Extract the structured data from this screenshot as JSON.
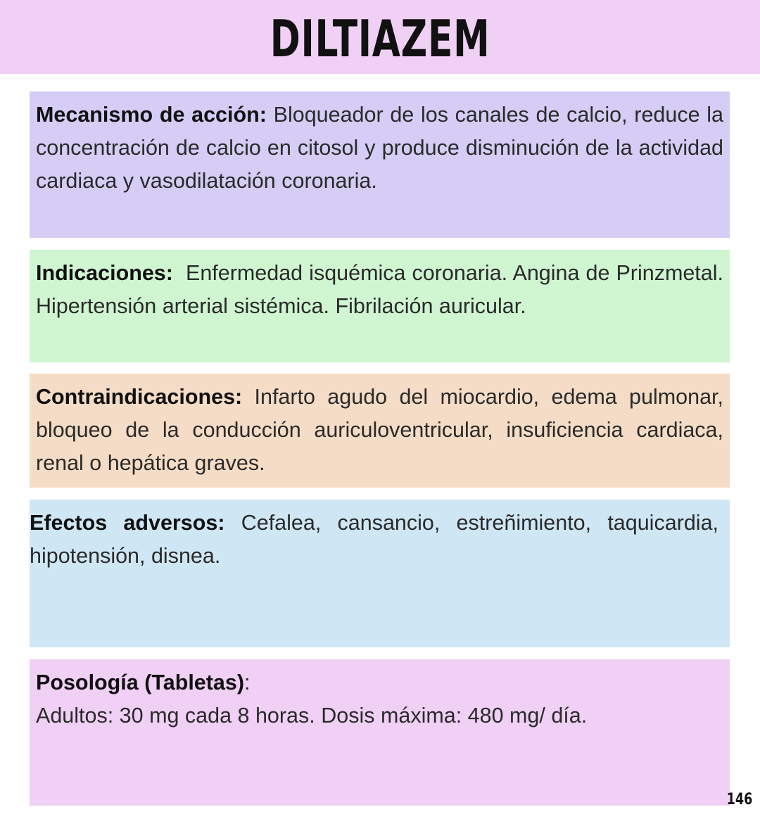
{
  "title": "DILTIAZEM",
  "sections": [
    {
      "label": "Mecanismo de acción:",
      "text": " Bloqueador de los canales de calcio, reduce la concentración de calcio en citosol y produce disminución de la actividad cardiaca y vasodilatación coronaria.",
      "color": "#d5cdf5"
    },
    {
      "label": "Indicaciones:",
      "text": "  Enfermedad isquémica coronaria. Angina de Prinzmetal. Hipertensión arterial sistémica. Fibrilación auricular.",
      "color": "#cff5d1"
    },
    {
      "label": "Contraindicaciones:",
      "text": " Infarto agudo del miocardio, edema pulmonar, bloqueo de la conducción auriculoventricular, insuficiencia cardiaca, renal o hepática graves.",
      "color": "#f5dcc6"
    },
    {
      "label": "Efectos adversos:",
      "text": " Cefalea, cansancio, estreñimiento, taquicardia, hipotensión, disnea.",
      "color": "#cfe7f5"
    },
    {
      "label": "Posología (Tabletas)",
      "suffix": ":",
      "text": "Adultos: 30 mg cada 8 horas. Dosis máxima: 480 mg/ día.",
      "color": "#f0d0f5"
    }
  ],
  "page_number": "146"
}
